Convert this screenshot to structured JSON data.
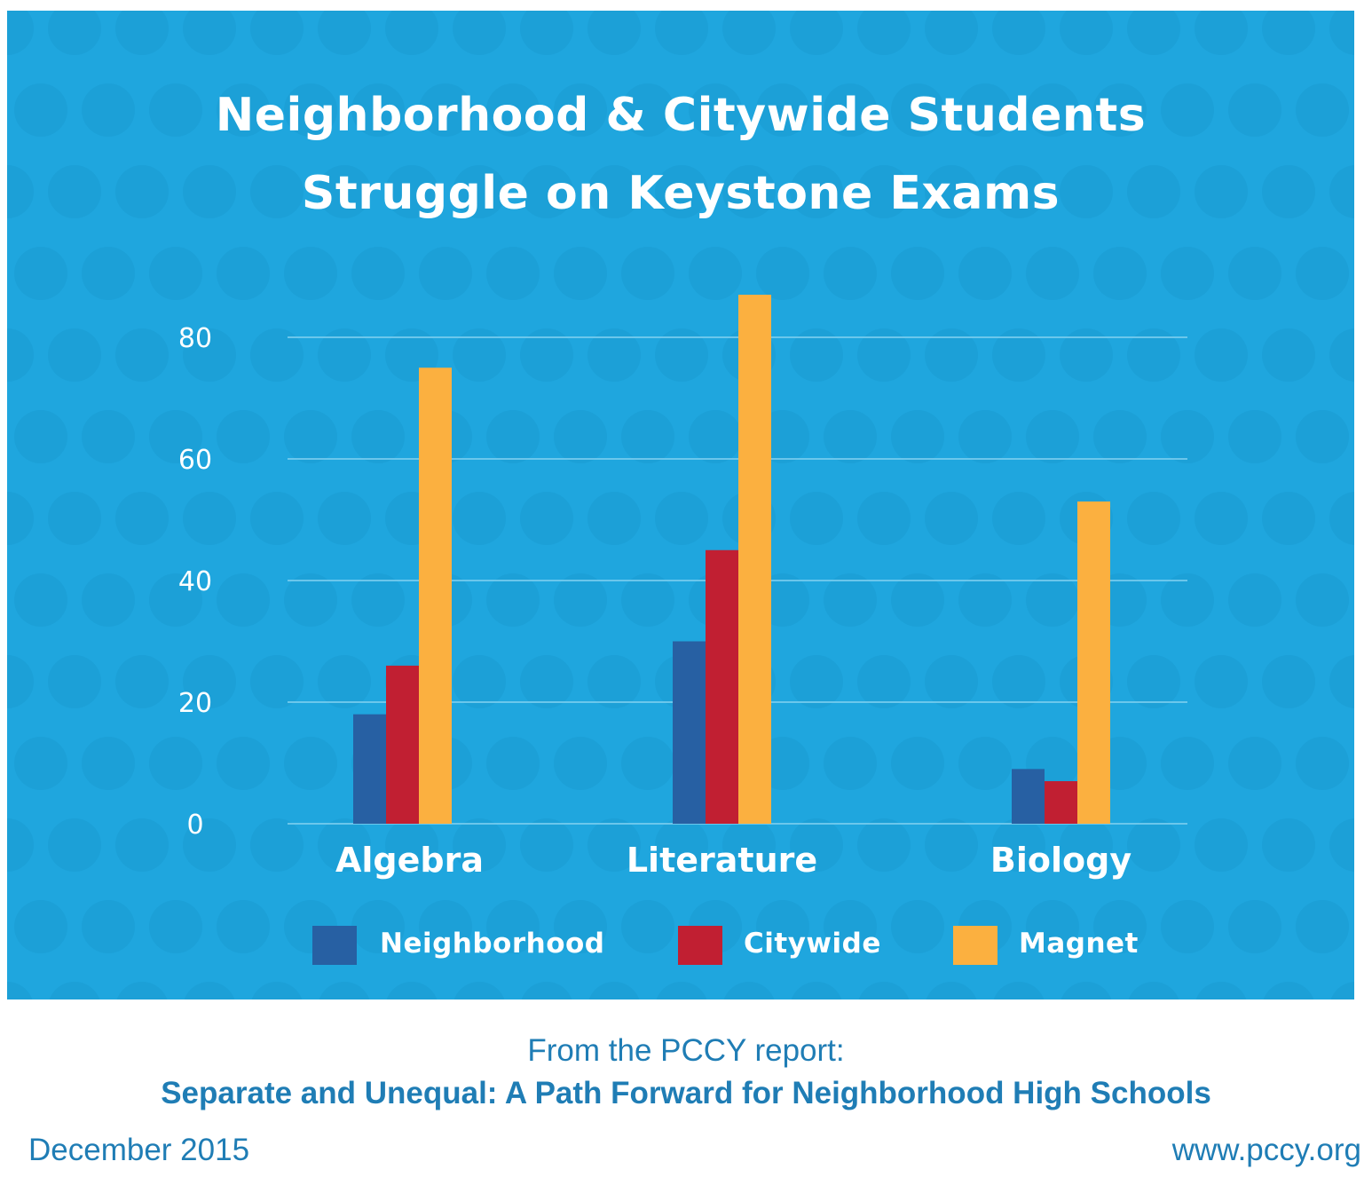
{
  "colors": {
    "background": "#1fa6de",
    "grid": "#7fd0f0",
    "text": "#ffffff",
    "caption": "#1f7db5"
  },
  "chart_data": {
    "type": "bar",
    "title": "Neighborhood & Citywide Students Struggle on Keystone Exams",
    "title_lines": [
      "Neighborhood & Citywide Students",
      "Struggle on Keystone Exams"
    ],
    "categories": [
      "Algebra",
      "Literature",
      "Biology"
    ],
    "series": [
      {
        "name": "Neighborhood",
        "color": "#2760a3",
        "values": [
          18,
          30,
          9
        ]
      },
      {
        "name": "Citywide",
        "color": "#c11f32",
        "values": [
          26,
          45,
          7
        ]
      },
      {
        "name": "Magnet",
        "color": "#fbb040",
        "values": [
          75,
          87,
          53
        ]
      }
    ],
    "y_ticks": [
      "0",
      "20",
      "40",
      "60",
      "80"
    ],
    "ylim": [
      0,
      80
    ],
    "grid": true,
    "legend": "bottom"
  },
  "caption": {
    "source": "From the PCCY report:",
    "report_title": "Separate and Unequal: A Path Forward for Neighborhood High Schools",
    "date": "December 2015",
    "url": "www.pccy.org"
  }
}
